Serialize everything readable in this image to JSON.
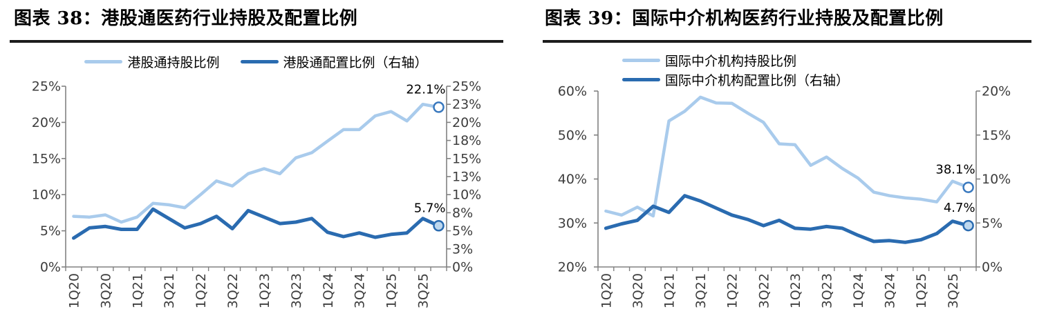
{
  "chart_data": [
    {
      "figure_label": "图表 38",
      "type": "line",
      "title": "图表 38：港股通医药行业持股及配置比例",
      "legend_position": "top",
      "categories": [
        "1Q20",
        "2Q20",
        "3Q20",
        "4Q20",
        "1Q21",
        "2Q21",
        "3Q21",
        "4Q21",
        "1Q22",
        "2Q22",
        "3Q22",
        "4Q22",
        "1Q23",
        "2Q23",
        "3Q23",
        "4Q23",
        "1Q24",
        "2Q24",
        "3Q24",
        "4Q24",
        "1Q25",
        "2Q25",
        "3Q25",
        "4Q25"
      ],
      "x_axis_labels": [
        "1Q20",
        "3Q20",
        "1Q21",
        "3Q21",
        "1Q22",
        "3Q22",
        "1Q23",
        "3Q23",
        "1Q24",
        "3Q24",
        "1Q25",
        "3Q25"
      ],
      "left_axis": {
        "range": [
          0,
          25
        ],
        "tick_labels": [
          "25%",
          "20%",
          "15%",
          "10%",
          "5%",
          "0%"
        ]
      },
      "right_axis": {
        "range": [
          0,
          25
        ],
        "tick_labels": [
          "25%",
          "23%",
          "20%",
          "18%",
          "15%",
          "13%",
          "10%",
          "8%",
          "5%",
          "3%",
          "0%"
        ]
      },
      "series": [
        {
          "name": "港股通持股比例",
          "axis": "left",
          "color": "#A9CBEC",
          "stroke_width": 4.5,
          "values": [
            7.0,
            6.9,
            7.2,
            6.2,
            6.9,
            8.8,
            8.6,
            8.2,
            10.0,
            11.9,
            11.2,
            12.9,
            13.6,
            12.9,
            15.1,
            15.8,
            17.4,
            19.0,
            19.0,
            20.9,
            21.5,
            20.2,
            22.5,
            22.1
          ],
          "end_label": "22.1%",
          "end_marker_fill": "#FFFFFF",
          "end_marker_stroke": "#3878BE"
        },
        {
          "name": "港股通配置比例（右轴）",
          "axis": "right",
          "color": "#2A6BB0",
          "stroke_width": 5,
          "values": [
            4.0,
            5.4,
            5.6,
            5.2,
            5.2,
            8.0,
            6.7,
            5.4,
            6.0,
            7.0,
            5.3,
            7.8,
            6.9,
            6.0,
            6.2,
            6.7,
            4.8,
            4.2,
            4.7,
            4.1,
            4.5,
            4.7,
            6.7,
            5.7
          ],
          "end_label": "5.7%",
          "end_marker_fill": "#BDD7EE",
          "end_marker_stroke": "#2A6BB0"
        }
      ]
    },
    {
      "figure_label": "图表 39",
      "type": "line",
      "title": "图表 39：国际中介机构医药行业持股及配置比例",
      "legend_position": "top",
      "categories": [
        "1Q20",
        "2Q20",
        "3Q20",
        "4Q20",
        "1Q21",
        "2Q21",
        "3Q21",
        "4Q21",
        "1Q22",
        "2Q22",
        "3Q22",
        "4Q22",
        "1Q23",
        "2Q23",
        "3Q23",
        "4Q23",
        "1Q24",
        "2Q24",
        "3Q24",
        "4Q24",
        "1Q25",
        "2Q25",
        "3Q25",
        "4Q25"
      ],
      "x_axis_labels": [
        "1Q20",
        "3Q20",
        "1Q21",
        "3Q21",
        "1Q22",
        "3Q22",
        "1Q23",
        "3Q23",
        "1Q24",
        "3Q24",
        "1Q25",
        "3Q25"
      ],
      "left_axis": {
        "range": [
          20,
          60
        ],
        "tick_labels": [
          "60%",
          "50%",
          "40%",
          "30%",
          "20%"
        ]
      },
      "right_axis": {
        "range": [
          0,
          20
        ],
        "tick_labels": [
          "20%",
          "15%",
          "10%",
          "5%",
          "0%"
        ]
      },
      "series": [
        {
          "name": "国际中介机构持股比例",
          "axis": "left",
          "color": "#A9CBEC",
          "stroke_width": 4.5,
          "values": [
            32.7,
            31.8,
            33.6,
            31.6,
            53.2,
            55.4,
            58.6,
            57.3,
            57.2,
            55.0,
            52.9,
            48.0,
            47.8,
            43.1,
            45.0,
            42.4,
            40.2,
            37.0,
            36.2,
            35.7,
            35.4,
            34.8,
            39.5,
            38.1
          ],
          "end_label": "38.1%",
          "end_marker_fill": "#FFFFFF",
          "end_marker_stroke": "#3878BE"
        },
        {
          "name": "国际中介机构配置比例（右轴）",
          "axis": "right",
          "color": "#2A6BB0",
          "stroke_width": 5,
          "values": [
            4.4,
            4.9,
            5.3,
            6.9,
            6.2,
            8.1,
            7.5,
            6.7,
            5.9,
            5.4,
            4.7,
            5.3,
            4.4,
            4.3,
            4.6,
            4.4,
            3.6,
            2.9,
            3.0,
            2.8,
            3.1,
            3.8,
            5.2,
            4.7
          ],
          "end_label": "4.7%",
          "end_marker_fill": "#BDD7EE",
          "end_marker_stroke": "#2A6BB0"
        }
      ]
    }
  ]
}
